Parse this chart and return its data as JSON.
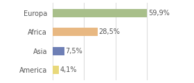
{
  "categories": [
    "Europa",
    "Africa",
    "Asia",
    "America"
  ],
  "values": [
    59.9,
    28.5,
    7.5,
    4.1
  ],
  "labels": [
    "59,9%",
    "28,5%",
    "7,5%",
    "4,1%"
  ],
  "bar_colors": [
    "#a8bf8a",
    "#e8b882",
    "#6e7fb5",
    "#e8d87a"
  ],
  "xlim": [
    0,
    75
  ],
  "background_color": "#ffffff",
  "grid_color": "#dddddd",
  "text_color": "#555555",
  "bar_height": 0.45,
  "label_fontsize": 7,
  "tick_fontsize": 7
}
